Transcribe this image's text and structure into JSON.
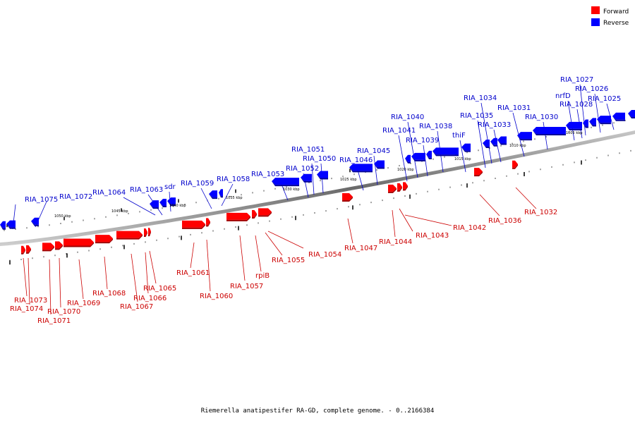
{
  "legend": [
    {
      "label": "Forward",
      "color": "#ff0000"
    },
    {
      "label": "Reverse",
      "color": "#0000ff"
    }
  ],
  "caption": "Riemerella anatipestifer RA-GD, complete genome. - 0..2166384",
  "colors": {
    "forward": "#ff0000",
    "forward_dark": "#a00000",
    "reverse": "#0000ff",
    "reverse_dark": "#00009a",
    "backbone": "#808080"
  },
  "scale_ticks": [
    "1050 kbp",
    "1045 kbp",
    "1040 kbp",
    "1035 kbp",
    "1030 kbp",
    "1025 kbp",
    "1020 kbp",
    "1015 kbp",
    "1010 kbp",
    "1005 kbp"
  ],
  "reverse_genes": [
    "RIA_1075",
    "RIA_1072",
    "RIA_1064",
    "RIA_1063",
    "sdr",
    "RIA_1059",
    "RIA_1058",
    "RIA_1053",
    "RIA_1052",
    "RIA_1051",
    "RIA_1050",
    "RIA_1046",
    "RIA_1045",
    "RIA_1041",
    "RIA_1040",
    "RIA_1039",
    "RIA_1038",
    "thiF",
    "RIA_1035",
    "RIA_1034",
    "RIA_1033",
    "RIA_1031",
    "RIA_1030",
    "RIA_1028",
    "nrfD",
    "RIA_1027",
    "RIA_1026",
    "RIA_1025"
  ],
  "forward_genes": [
    "RIA_1073",
    "RIA_1074",
    "RIA_1071",
    "RIA_1070",
    "RIA_1069",
    "RIA_1068",
    "RIA_1067",
    "RIA_1066",
    "RIA_1065",
    "RIA_1061",
    "RIA_1060",
    "RIA_1057",
    "rpiB",
    "RIA_1055",
    "RIA_1054",
    "RIA_1047",
    "RIA_1044",
    "RIA_1043",
    "RIA_1042",
    "RIA_1036",
    "RIA_1032"
  ]
}
